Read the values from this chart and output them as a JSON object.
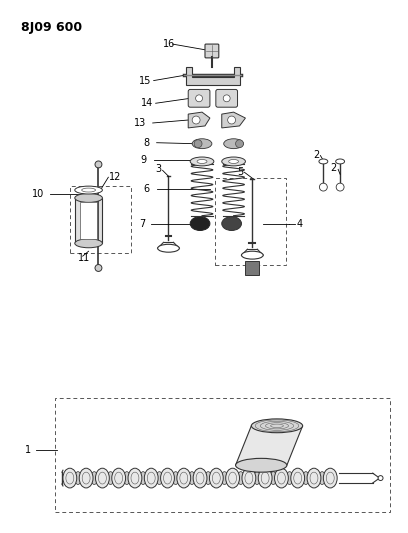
{
  "title": "8J09 600",
  "bg_color": "#ffffff",
  "fg_color": "#000000",
  "fig_width": 4.08,
  "fig_height": 5.33,
  "dpi": 100
}
